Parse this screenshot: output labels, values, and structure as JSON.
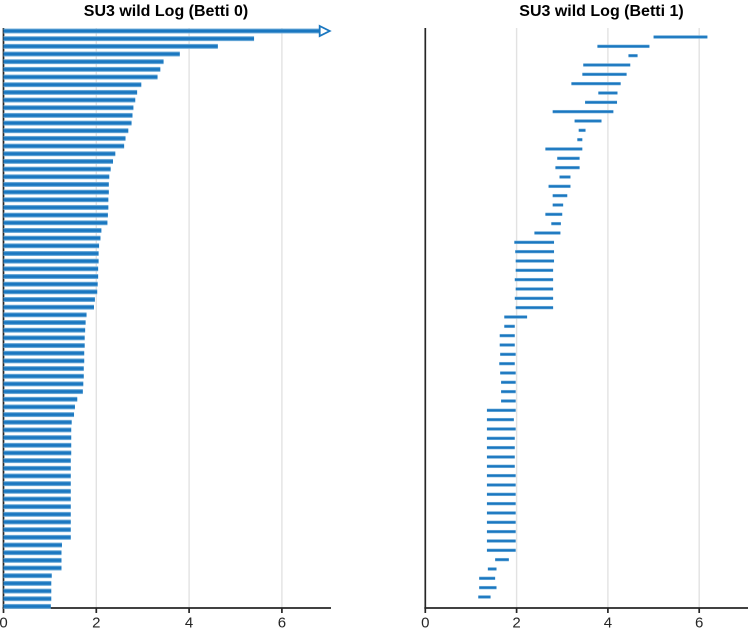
{
  "figure": {
    "background": "#ffffff",
    "bar_color": "#1a77c0",
    "bar_edge_color": "#8fc0e2",
    "grid_color": "#e2e2e2",
    "axis_color": "#262626",
    "tick_label_color": "#262626",
    "title_color": "#000000"
  },
  "chart_data": [
    {
      "type": "bar",
      "subtype": "persistence-barcode",
      "title": "SU3 wild Log (Betti 0)",
      "xlabel": "",
      "ylabel": "",
      "xticks": [
        0,
        2,
        4,
        6
      ],
      "xlim": [
        0,
        7.05
      ],
      "grid": true,
      "legend_position": "none",
      "bar_orientation": "horizontal",
      "note": "76 bars, all births at 0, sorted by death descending; first bar is infinite (open right-arrow at ~7)",
      "intervals": [
        [
          0,
          "inf"
        ],
        [
          0,
          5.4
        ],
        [
          0,
          4.62
        ],
        [
          0,
          3.8
        ],
        [
          0,
          3.45
        ],
        [
          0,
          3.38
        ],
        [
          0,
          3.32
        ],
        [
          0,
          2.97
        ],
        [
          0,
          2.88
        ],
        [
          0,
          2.84
        ],
        [
          0,
          2.8
        ],
        [
          0,
          2.78
        ],
        [
          0,
          2.76
        ],
        [
          0,
          2.69
        ],
        [
          0,
          2.63
        ],
        [
          0,
          2.6
        ],
        [
          0,
          2.41
        ],
        [
          0,
          2.36
        ],
        [
          0,
          2.31
        ],
        [
          0,
          2.28
        ],
        [
          0,
          2.27
        ],
        [
          0,
          2.27
        ],
        [
          0,
          2.26
        ],
        [
          0,
          2.26
        ],
        [
          0,
          2.25
        ],
        [
          0,
          2.24
        ],
        [
          0,
          2.11
        ],
        [
          0,
          2.09
        ],
        [
          0,
          2.06
        ],
        [
          0,
          2.05
        ],
        [
          0,
          2.05
        ],
        [
          0,
          2.04
        ],
        [
          0,
          2.04
        ],
        [
          0,
          2.03
        ],
        [
          0,
          2.02
        ],
        [
          0,
          1.97
        ],
        [
          0,
          1.95
        ],
        [
          0,
          1.79
        ],
        [
          0,
          1.77
        ],
        [
          0,
          1.76
        ],
        [
          0,
          1.75
        ],
        [
          0,
          1.75
        ],
        [
          0,
          1.74
        ],
        [
          0,
          1.74
        ],
        [
          0,
          1.73
        ],
        [
          0,
          1.73
        ],
        [
          0,
          1.72
        ],
        [
          0,
          1.71
        ],
        [
          0,
          1.59
        ],
        [
          0,
          1.54
        ],
        [
          0,
          1.52
        ],
        [
          0,
          1.47
        ],
        [
          0,
          1.46
        ],
        [
          0,
          1.46
        ],
        [
          0,
          1.46
        ],
        [
          0,
          1.46
        ],
        [
          0,
          1.45
        ],
        [
          0,
          1.45
        ],
        [
          0,
          1.45
        ],
        [
          0,
          1.45
        ],
        [
          0,
          1.45
        ],
        [
          0,
          1.45
        ],
        [
          0,
          1.45
        ],
        [
          0,
          1.45
        ],
        [
          0,
          1.45
        ],
        [
          0,
          1.45
        ],
        [
          0,
          1.45
        ],
        [
          0,
          1.26
        ],
        [
          0,
          1.25
        ],
        [
          0,
          1.25
        ],
        [
          0,
          1.25
        ],
        [
          0,
          1.04
        ],
        [
          0,
          1.03
        ],
        [
          0,
          1.03
        ],
        [
          0,
          1.03
        ],
        [
          0,
          1.02
        ]
      ]
    },
    {
      "type": "bar",
      "subtype": "persistence-barcode",
      "title": "SU3 wild Log (Betti 1)",
      "xlabel": "",
      "ylabel": "",
      "xticks": [
        0,
        2,
        4,
        6
      ],
      "xlim": [
        0,
        7.08
      ],
      "grid": true,
      "legend_position": "none",
      "bar_orientation": "horizontal",
      "note": "61 finite bars [birth, death], sorted roughly by death descending",
      "intervals": [
        [
          5.0,
          6.18
        ],
        [
          3.77,
          4.91
        ],
        [
          4.45,
          4.65
        ],
        [
          3.46,
          4.49
        ],
        [
          3.44,
          4.41
        ],
        [
          3.2,
          4.28
        ],
        [
          3.79,
          4.21
        ],
        [
          3.5,
          4.2
        ],
        [
          2.79,
          4.12
        ],
        [
          3.27,
          3.86
        ],
        [
          3.36,
          3.51
        ],
        [
          3.33,
          3.44
        ],
        [
          2.63,
          3.44
        ],
        [
          2.89,
          3.38
        ],
        [
          2.85,
          3.38
        ],
        [
          2.94,
          3.18
        ],
        [
          2.7,
          3.18
        ],
        [
          2.79,
          3.11
        ],
        [
          2.79,
          3.02
        ],
        [
          2.63,
          3.0
        ],
        [
          2.76,
          2.97
        ],
        [
          2.39,
          2.96
        ],
        [
          1.95,
          2.82
        ],
        [
          1.97,
          2.82
        ],
        [
          1.98,
          2.82
        ],
        [
          1.98,
          2.8
        ],
        [
          1.96,
          2.8
        ],
        [
          1.98,
          2.8
        ],
        [
          1.96,
          2.8
        ],
        [
          1.98,
          2.8
        ],
        [
          1.73,
          2.23
        ],
        [
          1.73,
          1.96
        ],
        [
          1.63,
          1.96
        ],
        [
          1.63,
          1.96
        ],
        [
          1.64,
          1.98
        ],
        [
          1.62,
          1.96
        ],
        [
          1.64,
          1.98
        ],
        [
          1.66,
          1.98
        ],
        [
          1.66,
          1.98
        ],
        [
          1.66,
          1.98
        ],
        [
          1.35,
          1.98
        ],
        [
          1.35,
          1.94
        ],
        [
          1.35,
          1.98
        ],
        [
          1.35,
          1.96
        ],
        [
          1.35,
          1.96
        ],
        [
          1.35,
          1.96
        ],
        [
          1.35,
          1.96
        ],
        [
          1.35,
          1.98
        ],
        [
          1.35,
          1.98
        ],
        [
          1.35,
          1.98
        ],
        [
          1.35,
          1.98
        ],
        [
          1.35,
          1.98
        ],
        [
          1.35,
          1.98
        ],
        [
          1.35,
          1.98
        ],
        [
          1.35,
          1.98
        ],
        [
          1.35,
          1.98
        ],
        [
          1.53,
          1.83
        ],
        [
          1.37,
          1.56
        ],
        [
          1.18,
          1.53
        ],
        [
          1.18,
          1.56
        ],
        [
          1.16,
          1.43
        ]
      ]
    }
  ]
}
